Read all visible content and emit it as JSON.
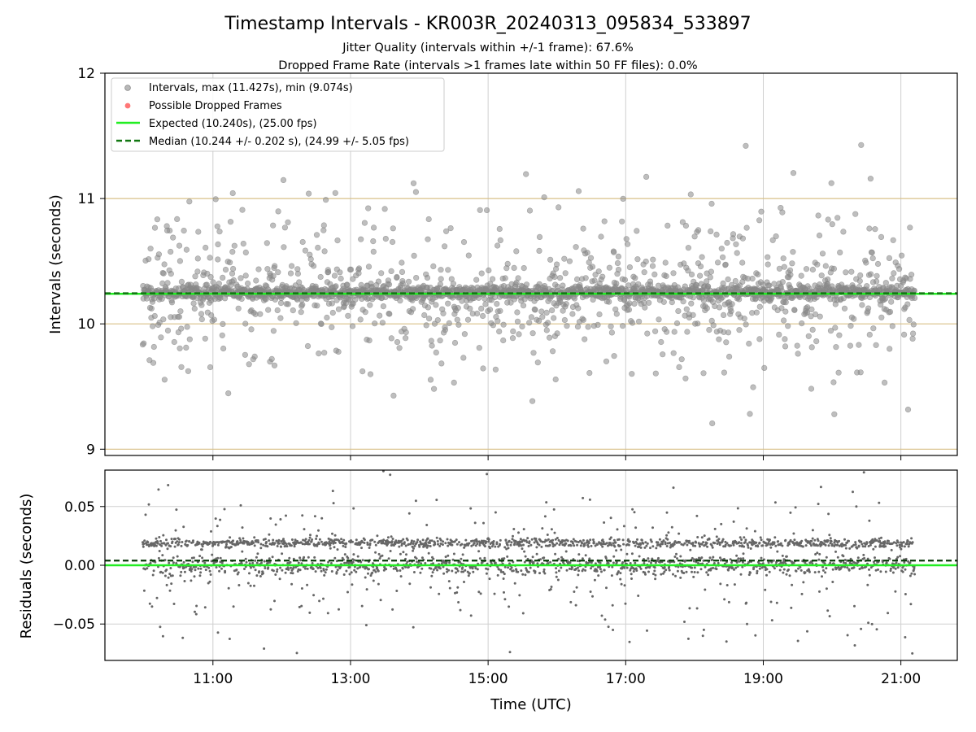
{
  "figure": {
    "title": "Timestamp Intervals - KR003R_20240313_095834_533897",
    "subtitle_1": "Jitter Quality (intervals within +/-1 frame): 67.6%",
    "subtitle_2": "Dropped Frame Rate (intervals >1 frames late within 50 FF files): 0.0%"
  },
  "chart_data": [
    {
      "type": "scatter",
      "ylabel": "Intervals (seconds)",
      "ylim": [
        8.95,
        12.0
      ],
      "yticks": [
        9,
        10,
        11,
        12
      ],
      "yticks_labels": [
        "9",
        "10",
        "11",
        "12"
      ],
      "xlim_hours": [
        9.43,
        21.82
      ],
      "x_range_hours": [
        9.98,
        21.2
      ],
      "grid": "vertical",
      "legend_position": "top-left",
      "legend": [
        {
          "label": "Intervals, max (11.427s), min (9.074s)",
          "color": "#888888",
          "marker": "dot"
        },
        {
          "label": "Possible Dropped Frames",
          "color": "#ff5555",
          "marker": "dot"
        },
        {
          "label": "Expected (10.240s), (25.00 fps)",
          "color": "#22ee22",
          "marker": "line"
        },
        {
          "label": "Median (10.244 +/- 0.202 s), (24.99 +/- 5.05 fps)",
          "color": "#117711",
          "marker": "dashed"
        }
      ],
      "expected_interval": 10.24,
      "median_interval": 10.244,
      "median_std": 0.202,
      "interval_max": 11.427,
      "interval_min": 9.074,
      "reference_lines": [
        9,
        10,
        11
      ],
      "series_color": "#888888"
    },
    {
      "type": "scatter",
      "ylabel": "Residuals (seconds)",
      "xlabel": "Time (UTC)",
      "ylim": [
        -0.081,
        0.081
      ],
      "yticks": [
        -0.05,
        0.0,
        0.05
      ],
      "yticks_labels": [
        "−0.05",
        "0.00",
        "0.05"
      ],
      "xticks_hours": [
        11,
        13,
        15,
        17,
        19,
        21
      ],
      "xticks_labels": [
        "11:00",
        "13:00",
        "15:00",
        "17:00",
        "19:00",
        "21:00"
      ],
      "grid": "both",
      "expected_residual": 0.0,
      "median_residual": 0.004,
      "series_color": "#666666"
    }
  ],
  "colors": {
    "expected": "#22ee22",
    "median": "#117711",
    "reference": "#d8c088",
    "grid": "#cfcfcf",
    "points_top": "#888888",
    "points_bottom": "#666666"
  }
}
